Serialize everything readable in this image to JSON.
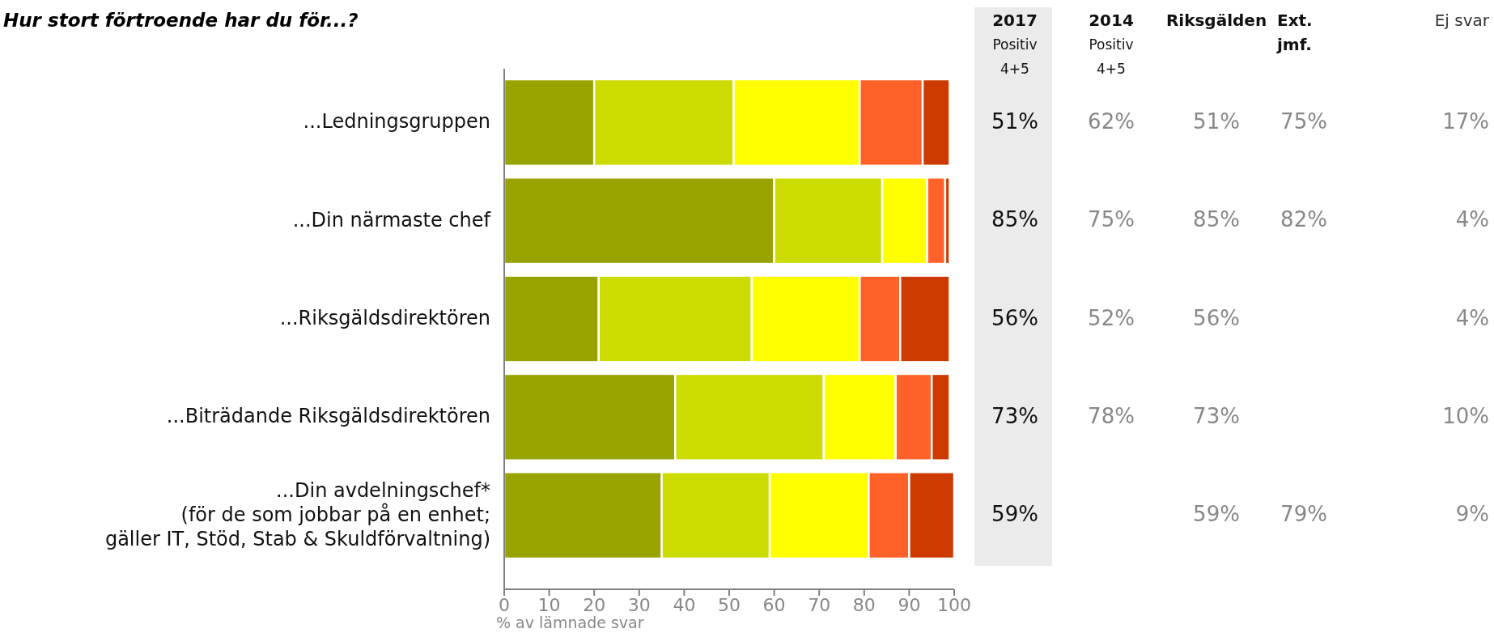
{
  "chart_data": {
    "type": "bar",
    "orientation": "horizontal",
    "stacked": true,
    "title": "Hur stort förtroende har du för...?",
    "xlabel": "% av lämnade svar",
    "categories": [
      "...Ledningsgruppen",
      "...Din närmaste chef",
      "...Riksgäldsdirektören",
      "...Biträdande Riksgäldsdirektören",
      "...Din avdelningschef*\n(för de som jobbar på en enhet;\ngäller IT, Stöd, Stab & Skuldförvaltning)"
    ],
    "series": [
      {
        "color": "#99a300",
        "values": [
          20,
          60,
          21,
          38,
          35
        ]
      },
      {
        "color": "#ccdb00",
        "values": [
          31,
          24,
          34,
          33,
          24
        ]
      },
      {
        "color": "#ffff00",
        "values": [
          28,
          10,
          24,
          16,
          22
        ]
      },
      {
        "color": "#ff6228",
        "values": [
          14,
          4,
          9,
          8,
          9
        ]
      },
      {
        "color": "#cc3a00",
        "values": [
          6,
          1,
          11,
          4,
          10
        ]
      }
    ],
    "xlim": [
      0,
      100
    ],
    "xticks": [
      0,
      10,
      20,
      30,
      40,
      50,
      60,
      70,
      80,
      90,
      100
    ],
    "annotations": [
      "2017",
      "Positiv",
      "4+5",
      "2014",
      "Positiv",
      "4+5",
      "Riksgälden",
      "Ext.",
      "jmf.",
      "Ej svar",
      "51%",
      "62%",
      "51%",
      "75%",
      "17%",
      "85%",
      "75%",
      "85%",
      "82%",
      "4%",
      "56%",
      "52%",
      "56%",
      "4%",
      "73%",
      "78%",
      "73%",
      "10%",
      "59%",
      "59%",
      "79%",
      "9%"
    ]
  }
}
